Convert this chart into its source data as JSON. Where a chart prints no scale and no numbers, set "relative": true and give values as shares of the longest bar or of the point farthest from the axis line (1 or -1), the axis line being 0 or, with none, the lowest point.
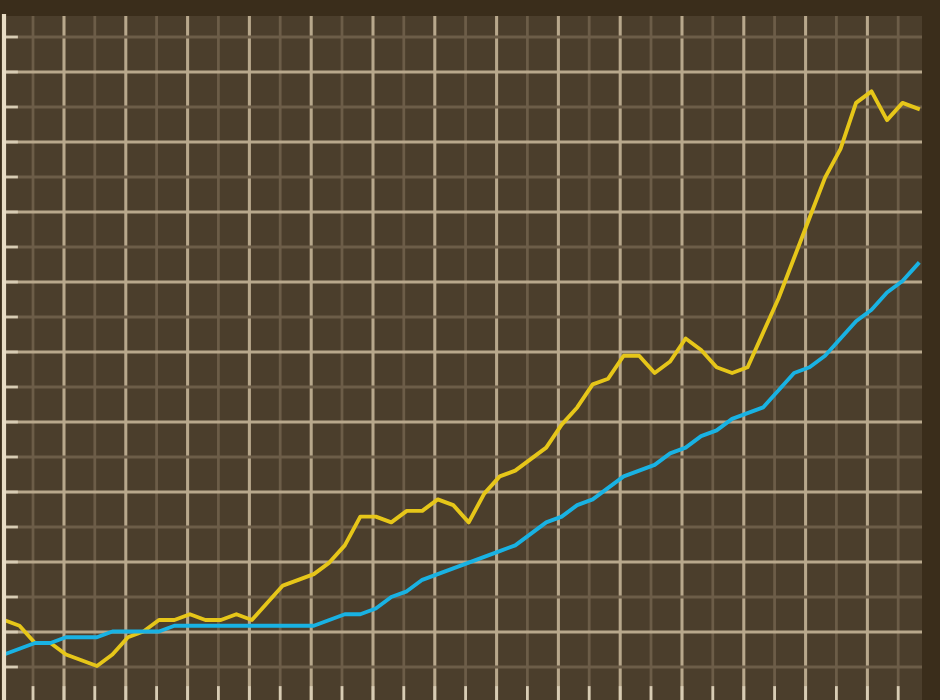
{
  "chart_data": {
    "type": "line",
    "relative": true,
    "grid": true,
    "marker": "none",
    "line_style": "solid",
    "categories": [
      null,
      null,
      null,
      null,
      null,
      null,
      null,
      null,
      null,
      null,
      null,
      null,
      null,
      null,
      null,
      null,
      null,
      null,
      null,
      null,
      null,
      null,
      null,
      null,
      null,
      null,
      null,
      null,
      null,
      null,
      null,
      null,
      null,
      null,
      null,
      null,
      null,
      null,
      null,
      null,
      null,
      null,
      null,
      null,
      null,
      null,
      null,
      null,
      null,
      null,
      null,
      null,
      null,
      null,
      null,
      null,
      null,
      null,
      null,
      null
    ],
    "series": [
      {
        "color": "#e6c619",
        "values": [
          0.08,
          0.07,
          0.04,
          0.04,
          0.02,
          0.01,
          0,
          0.02,
          0.05,
          0.06,
          0.08,
          0.08,
          0.09,
          0.08,
          0.08,
          0.09,
          0.08,
          0.11,
          0.14,
          0.15,
          0.16,
          0.18,
          0.21,
          0.26,
          0.26,
          0.25,
          0.27,
          0.27,
          0.29,
          0.28,
          0.25,
          0.3,
          0.33,
          0.34,
          0.36,
          0.38,
          0.42,
          0.45,
          0.49,
          0.5,
          0.54,
          0.54,
          0.51,
          0.53,
          0.57,
          0.55,
          0.52,
          0.51,
          0.52,
          0.58,
          0.64,
          0.71,
          0.78,
          0.85,
          0.9,
          0.98,
          1.0,
          0.95,
          0.98,
          0.97
        ]
      },
      {
        "color": "#19b2e3",
        "values": [
          0.02,
          0.03,
          0.04,
          0.04,
          0.05,
          0.05,
          0.05,
          0.06,
          0.06,
          0.06,
          0.06,
          0.07,
          0.07,
          0.07,
          0.07,
          0.07,
          0.07,
          0.07,
          0.07,
          0.07,
          0.07,
          0.08,
          0.09,
          0.09,
          0.1,
          0.12,
          0.13,
          0.15,
          0.16,
          0.17,
          0.18,
          0.19,
          0.2,
          0.21,
          0.23,
          0.25,
          0.26,
          0.28,
          0.29,
          0.31,
          0.33,
          0.34,
          0.35,
          0.37,
          0.38,
          0.4,
          0.41,
          0.43,
          0.44,
          0.45,
          0.48,
          0.51,
          0.52,
          0.54,
          0.57,
          0.6,
          0.62,
          0.65,
          0.67,
          0.7
        ]
      }
    ]
  }
}
